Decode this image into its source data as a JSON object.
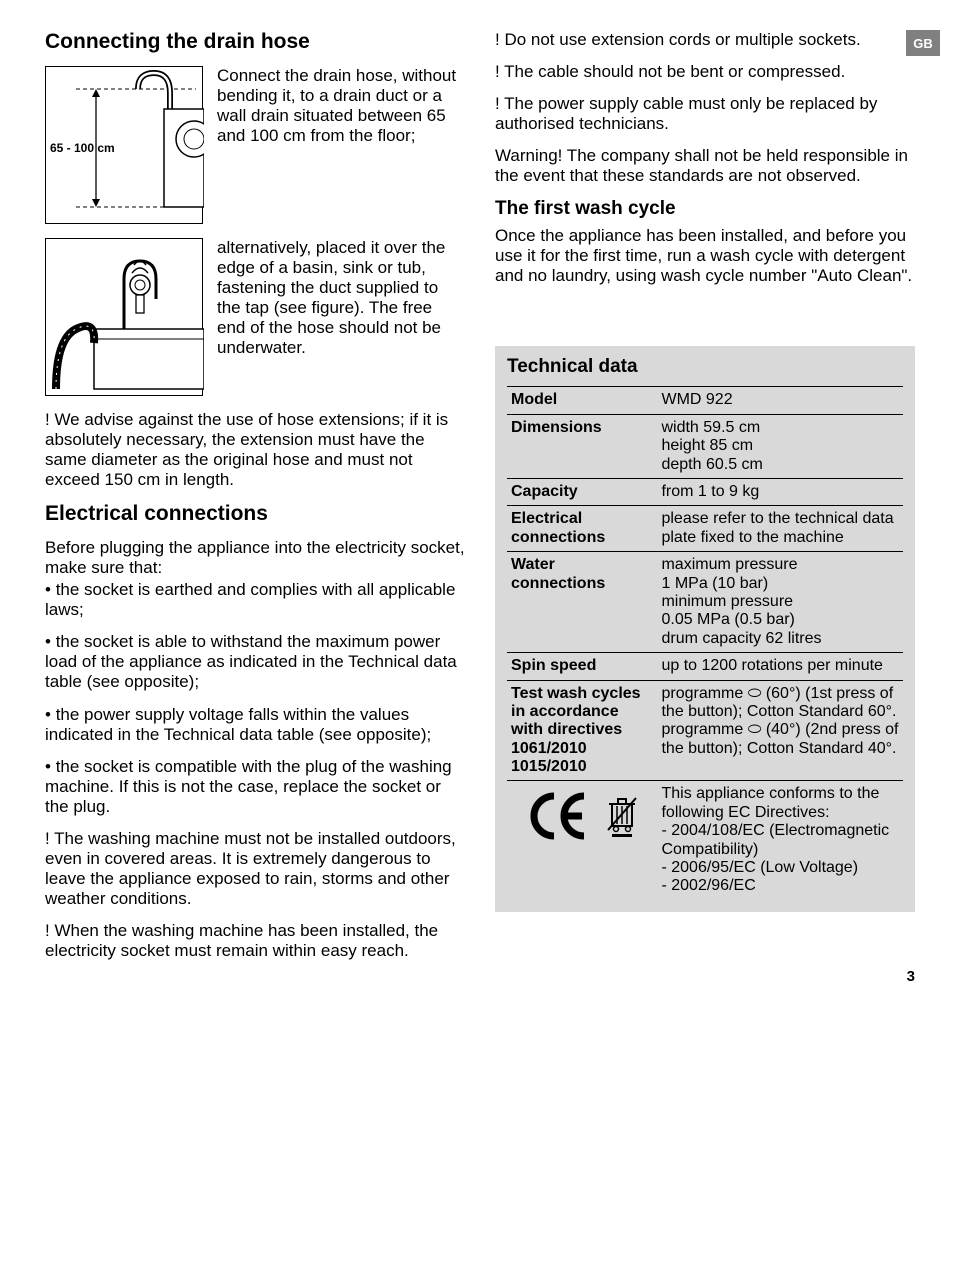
{
  "badge": "GB",
  "pageNumber": "3",
  "left": {
    "heading1": "Connecting the drain hose",
    "fig1_label": "65 - 100 cm",
    "fig1_text": "Connect the drain hose, without bending it, to a drain duct or a wall drain situated between 65 and 100 cm from the floor;",
    "fig2_text": "alternatively, placed it over the edge of a basin, sink or tub, fastening the duct supplied to the tap (see figure). The free end of the hose should not be underwater.",
    "warn1": "! We advise against the use of hose extensions; if it is absolutely necessary, the extension must have the same diameter as the original hose and must not exceed 150 cm in length.",
    "heading2": "Electrical connections",
    "elec_intro": "Before plugging the appliance into the electricity socket, make sure that:",
    "elec_b1": "the socket is earthed and complies with all applicable laws;",
    "elec_b2": "the socket is able to withstand the maximum power load of the appliance as indicated in the Technical data table (see opposite);",
    "elec_b3": "the power supply voltage falls within the values indicated in the Technical data table (see opposite);",
    "elec_b4": "the socket is compatible with the plug of the washing machine. If this is not the case, replace the socket or the plug.",
    "warn2": "! The washing machine must not be installed outdoors, even in covered areas. It is extremely dangerous to leave the appliance exposed to rain, storms and other weather conditions.",
    "warn3": "! When the washing machine has been installed, the electricity socket must remain within easy reach."
  },
  "right": {
    "w1": "! Do not use extension cords or multiple sockets.",
    "w2": "! The cable should not be bent or compressed.",
    "w3": "! The power supply cable must only be replaced by authorised technicians.",
    "w4": "Warning! The company shall not be held responsible in the event that these standards are not observed.",
    "heading3": "The first wash cycle",
    "first_wash": "Once the appliance has been installed, and before you use it for the first time, run a wash cycle with detergent and no laundry, using wash cycle number \"Auto Clean\"."
  },
  "tech": {
    "title": "Technical data",
    "rows": [
      {
        "label": "Model",
        "value": "WMD 922"
      },
      {
        "label": "Dimensions",
        "value": "width 59.5 cm\nheight 85 cm\ndepth 60.5 cm"
      },
      {
        "label": "Capacity",
        "value": "from 1 to 9 kg"
      },
      {
        "label": "Electrical connections",
        "value": "please refer to the technical data plate fixed to the machine"
      },
      {
        "label": "Water connections",
        "value": "maximum pressure\n1 MPa (10 bar)\nminimum pressure\n0.05 MPa (0.5 bar)\ndrum capacity 62 litres"
      },
      {
        "label": "Spin speed",
        "value": "up to 1200 rotations per minute"
      },
      {
        "label": "Test wash cycles in accordance with directives 1061/2010 1015/2010",
        "value": "programme ⬭ (60°) (1st press of the button); Cotton Standard 60°.\nprogramme ⬭ (40°) (2nd press of the button); Cotton Standard 40°."
      }
    ],
    "compliance": "This appliance conforms to the following EC Directives:\n- 2004/108/EC (Electromagnetic Compatibility)\n- 2006/95/EC (Low Voltage)\n- 2002/96/EC"
  }
}
